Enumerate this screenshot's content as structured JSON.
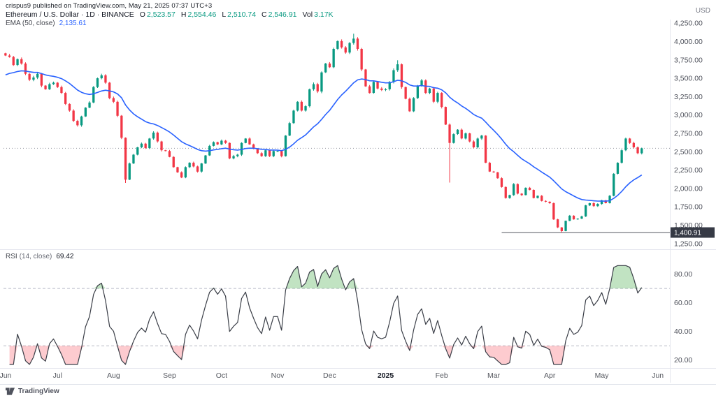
{
  "publisher": "crispus9 published on TradingView.com, May 21, 2025 07:37 UTC+3",
  "header": {
    "symbol": "Ethereum / U.S. Dollar · 1D · BINANCE",
    "ohlc": [
      {
        "label": "O",
        "value": "2,523.57"
      },
      {
        "label": "H",
        "value": "2,554.46"
      },
      {
        "label": "L",
        "value": "2,510.74"
      },
      {
        "label": "C",
        "value": "2,546.91"
      },
      {
        "label": "Vol",
        "value": "3.17K"
      }
    ],
    "ema_label": "EMA (50, close)",
    "ema_value": "2,135.61"
  },
  "rsi_legend": {
    "title": "RSI",
    "params": "(14, close)",
    "value": "69.42"
  },
  "axis": {
    "currency": "USD"
  },
  "footer": {
    "brand": "TradingView"
  },
  "colors": {
    "up": "#089981",
    "down": "#f23645",
    "ema": "#2962ff",
    "rsi": "#3a3e47",
    "overbought_fill": "rgba(76,175,80,0.35)",
    "oversold_fill": "rgba(247,82,95,0.30)",
    "band": "#b7bac6",
    "axis_text": "#4c4f59",
    "month_text": "#55585f",
    "price_line": "#9598a1",
    "low_line": "#555961",
    "low_badge_bg": "#363a45",
    "low_badge_text": "#ffffff"
  },
  "chart_data": {
    "type": "candlestick",
    "title": "Ethereum / U.S. Dollar, 1D, BINANCE",
    "x_range": "Jun 2024 - Jun 2025, daily bars (encoded ~1 bar per 2.2 days)",
    "price_domain": [
      1220,
      4280
    ],
    "slots": 166,
    "first_open": 3840,
    "closes": [
      3810,
      3790,
      3680,
      3760,
      3700,
      3560,
      3480,
      3510,
      3560,
      3400,
      3350,
      3420,
      3440,
      3380,
      3300,
      3150,
      3060,
      2920,
      2860,
      2980,
      3100,
      3170,
      3380,
      3500,
      3540,
      3440,
      3230,
      3180,
      2990,
      2690,
      2120,
      2340,
      2460,
      2560,
      2610,
      2550,
      2680,
      2760,
      2640,
      2520,
      2510,
      2430,
      2290,
      2220,
      2150,
      2290,
      2350,
      2300,
      2230,
      2340,
      2450,
      2580,
      2630,
      2600,
      2650,
      2620,
      2410,
      2440,
      2460,
      2620,
      2680,
      2600,
      2540,
      2480,
      2440,
      2520,
      2440,
      2510,
      2510,
      2440,
      2720,
      2890,
      3060,
      3180,
      3060,
      3120,
      3350,
      3420,
      3320,
      3580,
      3700,
      3650,
      3900,
      4005,
      3920,
      3850,
      3980,
      4040,
      3900,
      3620,
      3390,
      3300,
      3450,
      3360,
      3340,
      3350,
      3450,
      3610,
      3690,
      3380,
      3220,
      3050,
      3230,
      3400,
      3470,
      3300,
      3360,
      3180,
      3300,
      3110,
      2870,
      2620,
      2740,
      2800,
      2680,
      2750,
      2640,
      2560,
      2680,
      2720,
      2350,
      2230,
      2220,
      2140,
      2020,
      1870,
      1910,
      2060,
      1930,
      1910,
      2010,
      1980,
      1870,
      1900,
      1830,
      1820,
      1800,
      1580,
      1470,
      1420,
      1560,
      1630,
      1580,
      1590,
      1620,
      1770,
      1800,
      1760,
      1790,
      1840,
      1800,
      1900,
      2200,
      2350,
      2520,
      2680,
      2620,
      2560,
      2480,
      2547
    ],
    "wick_overrides": [
      {
        "i": 30,
        "low": 2075
      },
      {
        "i": 87,
        "high": 4106
      },
      {
        "i": 98,
        "high": 3745
      },
      {
        "i": 111,
        "low": 2080
      },
      {
        "i": 139,
        "low": 1400.91
      }
    ],
    "overlays": {
      "ema": {
        "label": "EMA (50, close)",
        "period_bars": 22,
        "seed": 3520,
        "last_value": 2135.61
      },
      "last_price": 2546.91,
      "low_price_line": {
        "value": 1400.91,
        "label": "1,400.91",
        "start_i": 124
      }
    },
    "rsi": {
      "label": "RSI (14, close)",
      "period_bars": 6,
      "last_value": 69.42,
      "domain": [
        15,
        92
      ],
      "bands": [
        70,
        30
      ]
    },
    "y_ticks_price": [
      {
        "v": 4250,
        "label": "4,250.00"
      },
      {
        "v": 4000,
        "label": "4,000.00"
      },
      {
        "v": 3750,
        "label": "3,750.00"
      },
      {
        "v": 3500,
        "label": "3,500.00"
      },
      {
        "v": 3250,
        "label": "3,250.00"
      },
      {
        "v": 3000,
        "label": "3,000.00"
      },
      {
        "v": 2750,
        "label": "2,750.00"
      },
      {
        "v": 2500,
        "label": "2,500.00"
      },
      {
        "v": 2250,
        "label": "2,250.00"
      },
      {
        "v": 2000,
        "label": "2,000.00"
      },
      {
        "v": 1750,
        "label": "1,750.00"
      },
      {
        "v": 1500,
        "label": "1,500.00"
      },
      {
        "v": 1250,
        "label": "1,250.00"
      }
    ],
    "y_ticks_rsi": [
      {
        "v": 80,
        "label": "80.00"
      },
      {
        "v": 60,
        "label": "60.00"
      },
      {
        "v": 40,
        "label": "40.00"
      },
      {
        "v": 20,
        "label": "20.00"
      }
    ],
    "x_labels": [
      {
        "label": "Jun",
        "i": 0
      },
      {
        "label": "Jul",
        "i": 13
      },
      {
        "label": "Aug",
        "i": 27
      },
      {
        "label": "Sep",
        "i": 41
      },
      {
        "label": "Oct",
        "i": 54
      },
      {
        "label": "Nov",
        "i": 68
      },
      {
        "label": "Dec",
        "i": 81
      },
      {
        "label": "2025",
        "i": 95,
        "bold": true
      },
      {
        "label": "Feb",
        "i": 109
      },
      {
        "label": "Mar",
        "i": 122
      },
      {
        "label": "Apr",
        "i": 136
      },
      {
        "label": "May",
        "i": 149
      },
      {
        "label": "Jun",
        "i": 163
      }
    ]
  }
}
